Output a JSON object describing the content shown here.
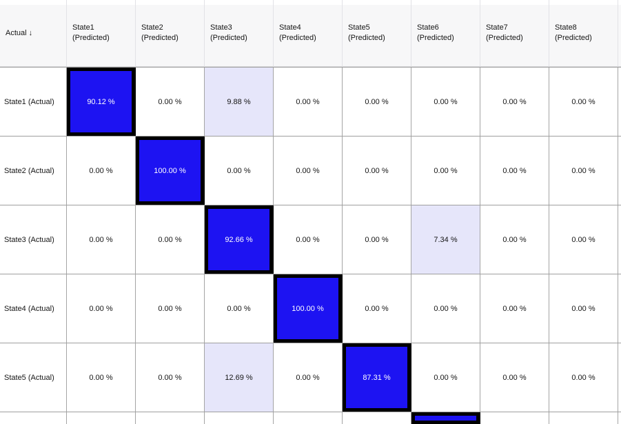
{
  "header": {
    "actual_label": "Actual ↓",
    "cols": [
      {
        "name": "State1",
        "sub": "(Predicted)"
      },
      {
        "name": "State2",
        "sub": "(Predicted)"
      },
      {
        "name": "State3",
        "sub": "(Predicted)"
      },
      {
        "name": "State4",
        "sub": "(Predicted)"
      },
      {
        "name": "State5",
        "sub": "(Predicted)"
      },
      {
        "name": "State6",
        "sub": "(Predicted)"
      },
      {
        "name": "State7",
        "sub": "(Predicted)"
      },
      {
        "name": "State8",
        "sub": "(Predicted)"
      }
    ]
  },
  "rows": [
    {
      "label": "State1 (Actual)",
      "cells": [
        "90.12 %",
        "0.00 %",
        "9.88 %",
        "0.00 %",
        "0.00 %",
        "0.00 %",
        "0.00 %",
        "0.00 %"
      ]
    },
    {
      "label": "State2 (Actual)",
      "cells": [
        "0.00 %",
        "100.00 %",
        "0.00 %",
        "0.00 %",
        "0.00 %",
        "0.00 %",
        "0.00 %",
        "0.00 %"
      ]
    },
    {
      "label": "State3 (Actual)",
      "cells": [
        "0.00 %",
        "0.00 %",
        "92.66 %",
        "0.00 %",
        "0.00 %",
        "7.34 %",
        "0.00 %",
        "0.00 %"
      ]
    },
    {
      "label": "State4 (Actual)",
      "cells": [
        "0.00 %",
        "0.00 %",
        "0.00 %",
        "100.00 %",
        "0.00 %",
        "0.00 %",
        "0.00 %",
        "0.00 %"
      ]
    },
    {
      "label": "State5 (Actual)",
      "cells": [
        "0.00 %",
        "0.00 %",
        "12.69 %",
        "0.00 %",
        "87.31 %",
        "0.00 %",
        "0.00 %",
        "0.00 %"
      ]
    }
  ],
  "partial_row": {
    "label": "",
    "cells": [
      "",
      "",
      "",
      "",
      "",
      "",
      "",
      ""
    ],
    "note": "row clipped at bottom edge; only blue diagonal cell in State6 column is visible"
  },
  "colors": {
    "diagonal_fill": "#1d13f2",
    "diagonal_border": "#000000",
    "offdiagonal_nonzero_fill": "#e6e6fa",
    "zero_fill": "#ffffff",
    "header_bg": "#f7f7f8",
    "gridline": "#a4a4a4"
  },
  "chart_data": {
    "type": "heatmap",
    "title": "",
    "row_axis_label": "Actual ↓",
    "columns": [
      "State1 (Predicted)",
      "State2 (Predicted)",
      "State3 (Predicted)",
      "State4 (Predicted)",
      "State5 (Predicted)",
      "State6 (Predicted)",
      "State7 (Predicted)",
      "State8 (Predicted)"
    ],
    "rows": [
      "State1 (Actual)",
      "State2 (Actual)",
      "State3 (Actual)",
      "State4 (Actual)",
      "State5 (Actual)"
    ],
    "values_percent": [
      [
        90.12,
        0.0,
        9.88,
        0.0,
        0.0,
        0.0,
        0.0,
        0.0
      ],
      [
        0.0,
        100.0,
        0.0,
        0.0,
        0.0,
        0.0,
        0.0,
        0.0
      ],
      [
        0.0,
        0.0,
        92.66,
        0.0,
        0.0,
        7.34,
        0.0,
        0.0
      ],
      [
        0.0,
        0.0,
        0.0,
        100.0,
        0.0,
        0.0,
        0.0,
        0.0
      ],
      [
        0.0,
        0.0,
        12.69,
        0.0,
        87.31,
        0.0,
        0.0,
        0.0
      ]
    ],
    "partial_sixth_row": {
      "diagonal_column": "State6 (Predicted)"
    },
    "legend_position": "none",
    "grid": true
  }
}
